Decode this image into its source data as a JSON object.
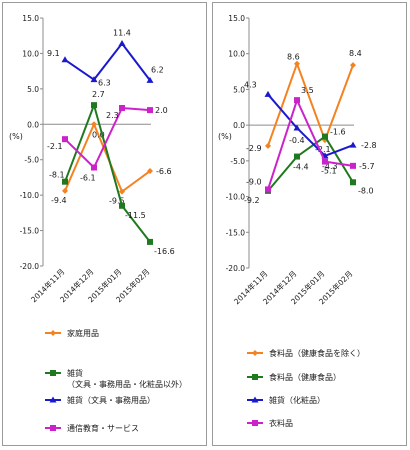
{
  "chart_data": [
    {
      "type": "line",
      "unit_label": "(%)",
      "ylim": [
        -20,
        15
      ],
      "yticks": [
        "15.0",
        "10.0",
        "5.0",
        "0.0",
        "-5.0",
        "-10.0",
        "-15.0",
        "-20.0"
      ],
      "categories": [
        "2014年11月",
        "2014年12月",
        "2015年01月",
        "2015年02月"
      ],
      "series": [
        {
          "name": "家庭用品",
          "color": "#f58220",
          "values": [
            -9.4,
            0.0,
            -9.5,
            -6.6
          ],
          "labels": [
            "-9.4",
            "0.0",
            "-9.5",
            "-6.6"
          ]
        },
        {
          "name": "雑貨（文具・事務用品・化粧品以外）",
          "color": "#1f7a1f",
          "values": [
            -8.1,
            2.7,
            -11.5,
            -16.6
          ],
          "labels": [
            "-8.1",
            "2.7",
            "-11.5",
            "-16.6"
          ]
        },
        {
          "name": "雑貨（文具・事務用品）",
          "color": "#1a1acc",
          "values": [
            9.1,
            6.3,
            11.4,
            6.2
          ],
          "labels": [
            "9.1",
            "6.3",
            "11.4",
            "6.2"
          ]
        },
        {
          "name": "通信教育・サービス",
          "color": "#cc22cc",
          "values": [
            -2.1,
            -6.1,
            2.3,
            2.0
          ],
          "labels": [
            "-2.1",
            "-6.1",
            "2.3",
            "2.0"
          ]
        }
      ],
      "legend_lines": [
        [
          "家庭用品"
        ],
        [
          "雑貨",
          "（文具・事務用品・化粧品以外）"
        ],
        [
          "雑貨（文具・事務用品）"
        ],
        [
          "通信教育・サービス"
        ]
      ],
      "legend_placement": "bottom"
    },
    {
      "type": "line",
      "unit_label": "(%)",
      "ylim": [
        -20,
        15
      ],
      "yticks": [
        "15.0",
        "10.0",
        "5.0",
        "0.0",
        "-5.0",
        "-10.0",
        "-15.0",
        "-20.0"
      ],
      "categories": [
        "2014年11月",
        "2014年12月",
        "2015年01月",
        "2015年02月"
      ],
      "series": [
        {
          "name": "食料品（健康食品を除く）",
          "color": "#f58220",
          "values": [
            -2.9,
            8.6,
            -2.1,
            8.4
          ],
          "labels": [
            "-2.9",
            "8.6",
            "-2.1",
            "8.4"
          ]
        },
        {
          "name": "食料品（健康食品）",
          "color": "#1f7a1f",
          "values": [
            -9.2,
            -4.4,
            -1.6,
            -8.0
          ],
          "labels": [
            "-9.2",
            "-4.4",
            "-1.6",
            "-8.0"
          ]
        },
        {
          "name": "雑貨（化粧品）",
          "color": "#1a1acc",
          "values": [
            4.3,
            -0.4,
            -4.3,
            -2.8
          ],
          "labels": [
            "4.3",
            "-0.4",
            "-4.3",
            "-2.8"
          ]
        },
        {
          "name": "衣料品",
          "color": "#cc22cc",
          "values": [
            -9.0,
            3.5,
            -5.1,
            -5.7
          ],
          "labels": [
            "-9.0",
            "3.5",
            "-5.1",
            "-5.7"
          ]
        }
      ],
      "legend_lines": [
        [
          "食料品（健康食品を除く）"
        ],
        [
          "食料品（健康食品）"
        ],
        [
          "雑貨（化粧品）"
        ],
        [
          "衣料品"
        ]
      ],
      "legend_placement": "bottom"
    }
  ]
}
